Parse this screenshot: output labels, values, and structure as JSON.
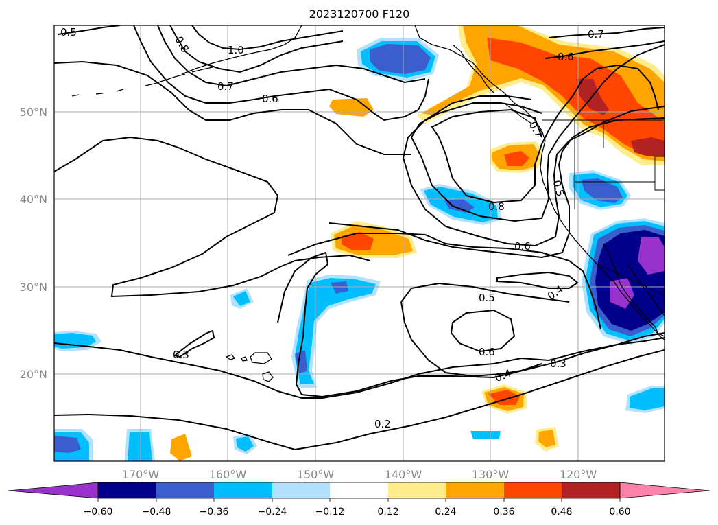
{
  "title": "2023120700 F120",
  "map": {
    "lat_labels": [
      "50°N",
      "40°N",
      "30°N",
      "20°N"
    ],
    "lon_labels": [
      "170°W",
      "160°W",
      "150°W",
      "140°W",
      "130°W",
      "120°W"
    ],
    "contour_labels": [
      "0.5",
      "0.8",
      "1.0",
      "0.7",
      "0.6",
      "0.7",
      "0.6",
      "0.7",
      "0.8",
      "0.5",
      "0.6",
      "0.5",
      "0.4",
      "0.6",
      "0.3",
      "0.4",
      "0.3",
      "0.2"
    ],
    "fill_colors": {
      "purple": "#9932CC",
      "navy": "#00008B",
      "royal_blue": "#3A5FCD",
      "deep_sky_blue": "#00BFFF",
      "light_blue": "#B0E2FF",
      "white": "#FFFFFF",
      "light_yellow": "#FFEC8B",
      "orange": "#FFA500",
      "orange_red": "#FF4500",
      "firebrick": "#B22222",
      "pink": "#FF82AB"
    }
  },
  "colorbar": {
    "tick_labels": [
      "−0.60",
      "−0.48",
      "−0.36",
      "−0.24",
      "−0.12",
      "0.12",
      "0.24",
      "0.36",
      "0.48",
      "0.60"
    ],
    "colors": [
      "#9932CC",
      "#00008B",
      "#3A5FCD",
      "#00BFFF",
      "#B0E2FF",
      "#FFFFFF",
      "#FFEC8B",
      "#FFA500",
      "#FF4500",
      "#B22222",
      "#FF82AB"
    ]
  }
}
